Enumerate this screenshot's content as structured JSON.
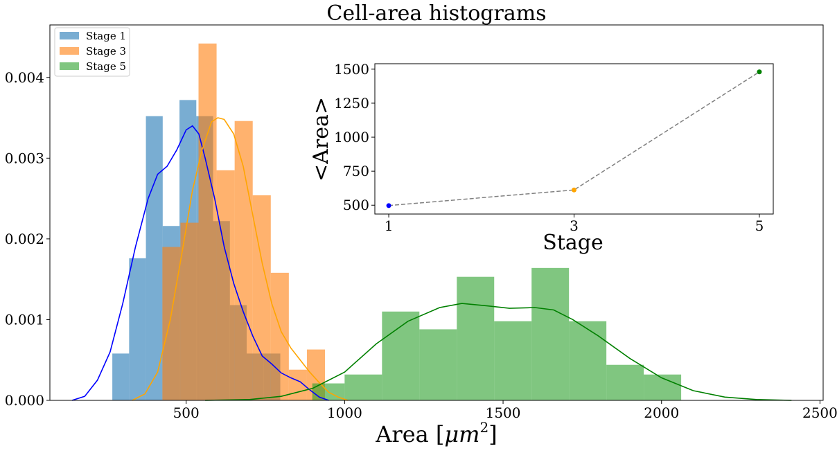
{
  "chart_data": [
    {
      "type": "histogram",
      "title": "Cell-area histograms",
      "xlabel": "Area [",
      "xlabel_math": "μm",
      "xlabel_sup": "2",
      "xlabel_end": "]",
      "ylabel": "",
      "xlim": [
        70,
        2510
      ],
      "ylim": [
        0,
        0.00465
      ],
      "xticks": [
        500,
        1000,
        1500,
        2000,
        2500
      ],
      "xtick_labels": [
        "500",
        "1000",
        "1500",
        "2000",
        "2500"
      ],
      "yticks": [
        0,
        0.001,
        0.002,
        0.003,
        0.004
      ],
      "ytick_labels": [
        "0.000",
        "0.001",
        "0.002",
        "0.003",
        "0.004"
      ],
      "legend_position": "top-left",
      "series": [
        {
          "name": "Stage 1",
          "color": "#1f77b4",
          "kde_color": "#0000ff",
          "bins": [
            {
              "x0": 267,
              "x1": 320,
              "density": 0.00058
            },
            {
              "x0": 320,
              "x1": 373,
              "density": 0.00176
            },
            {
              "x0": 373,
              "x1": 426,
              "density": 0.00352
            },
            {
              "x0": 426,
              "x1": 479,
              "density": 0.00216
            },
            {
              "x0": 479,
              "x1": 532,
              "density": 0.00372
            },
            {
              "x0": 532,
              "x1": 585,
              "density": 0.00352
            },
            {
              "x0": 585,
              "x1": 638,
              "density": 0.00222
            },
            {
              "x0": 638,
              "x1": 691,
              "density": 0.00118
            },
            {
              "x0": 691,
              "x1": 744,
              "density": 0.00058
            },
            {
              "x0": 744,
              "x1": 797,
              "density": 0.00058
            }
          ],
          "kde": [
            [
              140,
              0
            ],
            [
              180,
              5e-05
            ],
            [
              220,
              0.00025
            ],
            [
              260,
              0.0006
            ],
            [
              300,
              0.0012
            ],
            [
              340,
              0.0019
            ],
            [
              380,
              0.0025
            ],
            [
              410,
              0.0028
            ],
            [
              440,
              0.0029
            ],
            [
              470,
              0.0031
            ],
            [
              500,
              0.00335
            ],
            [
              520,
              0.0034
            ],
            [
              540,
              0.0033
            ],
            [
              560,
              0.003
            ],
            [
              590,
              0.0025
            ],
            [
              620,
              0.0019
            ],
            [
              650,
              0.00145
            ],
            [
              680,
              0.0011
            ],
            [
              710,
              0.0008
            ],
            [
              740,
              0.00055
            ],
            [
              770,
              0.00045
            ],
            [
              800,
              0.00034
            ],
            [
              830,
              0.00028
            ],
            [
              860,
              0.00023
            ],
            [
              890,
              0.00013
            ],
            [
              920,
              4e-05
            ],
            [
              950,
              0
            ]
          ]
        },
        {
          "name": "Stage 3",
          "color": "#ff7f0e",
          "kde_color": "#ffa500",
          "bins": [
            {
              "x0": 425,
              "x1": 482,
              "density": 0.0019
            },
            {
              "x0": 482,
              "x1": 539,
              "density": 0.0022
            },
            {
              "x0": 539,
              "x1": 596,
              "density": 0.00442
            },
            {
              "x0": 596,
              "x1": 653,
              "density": 0.00285
            },
            {
              "x0": 653,
              "x1": 710,
              "density": 0.00346
            },
            {
              "x0": 710,
              "x1": 767,
              "density": 0.00254
            },
            {
              "x0": 767,
              "x1": 824,
              "density": 0.00158
            },
            {
              "x0": 824,
              "x1": 881,
              "density": 0.00038
            },
            {
              "x0": 881,
              "x1": 938,
              "density": 0.00063
            }
          ],
          "kde": [
            [
              330,
              0
            ],
            [
              370,
              8e-05
            ],
            [
              410,
              0.00035
            ],
            [
              450,
              0.001
            ],
            [
              490,
              0.0019
            ],
            [
              520,
              0.0026
            ],
            [
              550,
              0.0031
            ],
            [
              580,
              0.00345
            ],
            [
              600,
              0.0035
            ],
            [
              620,
              0.00348
            ],
            [
              650,
              0.0033
            ],
            [
              680,
              0.0029
            ],
            [
              710,
              0.0023
            ],
            [
              740,
              0.0017
            ],
            [
              770,
              0.0012
            ],
            [
              800,
              0.00085
            ],
            [
              830,
              0.00065
            ],
            [
              860,
              0.0005
            ],
            [
              890,
              0.00035
            ],
            [
              920,
              0.00022
            ],
            [
              950,
              0.0001
            ],
            [
              980,
              4e-05
            ],
            [
              1010,
              0
            ]
          ]
        },
        {
          "name": "Stage 5",
          "color": "#2ca02c",
          "kde_color": "#008000",
          "bins": [
            {
              "x0": 898,
              "x1": 1000,
              "density": 0.00021
            },
            {
              "x0": 1000,
              "x1": 1118,
              "density": 0.00032
            },
            {
              "x0": 1118,
              "x1": 1236,
              "density": 0.0011
            },
            {
              "x0": 1236,
              "x1": 1354,
              "density": 0.00088
            },
            {
              "x0": 1354,
              "x1": 1472,
              "density": 0.00153
            },
            {
              "x0": 1472,
              "x1": 1590,
              "density": 0.00098
            },
            {
              "x0": 1590,
              "x1": 1708,
              "density": 0.00164
            },
            {
              "x0": 1708,
              "x1": 1826,
              "density": 0.00098
            },
            {
              "x0": 1826,
              "x1": 1944,
              "density": 0.00044
            },
            {
              "x0": 1944,
              "x1": 2062,
              "density": 0.00032
            }
          ],
          "kde": [
            [
              560,
              0
            ],
            [
              700,
              1e-05
            ],
            [
              800,
              5e-05
            ],
            [
              900,
              0.00015
            ],
            [
              1000,
              0.00035
            ],
            [
              1100,
              0.0007
            ],
            [
              1200,
              0.00098
            ],
            [
              1300,
              0.00115
            ],
            [
              1370,
              0.0012
            ],
            [
              1450,
              0.00117
            ],
            [
              1520,
              0.00114
            ],
            [
              1600,
              0.00115
            ],
            [
              1660,
              0.00112
            ],
            [
              1720,
              0.001
            ],
            [
              1800,
              0.0008
            ],
            [
              1900,
              0.00052
            ],
            [
              2000,
              0.00028
            ],
            [
              2100,
              0.00012
            ],
            [
              2200,
              4e-05
            ],
            [
              2300,
              1e-05
            ],
            [
              2410,
              0
            ]
          ]
        }
      ]
    },
    {
      "type": "line",
      "title": "",
      "xlabel": "Stage",
      "ylabel": "<Area>",
      "xlim": [
        0.85,
        5.15
      ],
      "ylim": [
        435,
        1540
      ],
      "xticks": [
        1,
        3,
        5
      ],
      "xtick_labels": [
        "1",
        "3",
        "5"
      ],
      "yticks": [
        500,
        750,
        1000,
        1250,
        1500
      ],
      "ytick_labels": [
        "500",
        "750",
        "1000",
        "1250",
        "1500"
      ],
      "line_style": "dashed",
      "line_color": "#808080",
      "points": [
        {
          "x": 1,
          "y": 497,
          "color": "#0000ff"
        },
        {
          "x": 3,
          "y": 612,
          "color": "#ffa500"
        },
        {
          "x": 5,
          "y": 1480,
          "color": "#008000"
        }
      ]
    }
  ]
}
